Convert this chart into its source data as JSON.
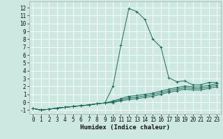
{
  "xlabel": "Humidex (Indice chaleur)",
  "bg_color": "#cce8e0",
  "grid_color": "#ffffff",
  "line_color": "#1a6b5a",
  "x_values": [
    0,
    1,
    2,
    3,
    4,
    5,
    6,
    7,
    8,
    9,
    10,
    11,
    12,
    13,
    14,
    15,
    16,
    17,
    18,
    19,
    20,
    21,
    22,
    23
  ],
  "line1": [
    -0.8,
    -1.0,
    -0.9,
    -0.75,
    -0.65,
    -0.55,
    -0.45,
    -0.35,
    -0.2,
    -0.1,
    2.0,
    7.2,
    11.9,
    11.5,
    10.5,
    8.0,
    7.0,
    3.1,
    2.6,
    2.7,
    2.2,
    2.2,
    2.5,
    2.5
  ],
  "line2": [
    -0.8,
    -1.0,
    -0.9,
    -0.75,
    -0.65,
    -0.55,
    -0.45,
    -0.35,
    -0.2,
    -0.1,
    0.15,
    0.45,
    0.75,
    0.85,
    1.0,
    1.15,
    1.4,
    1.65,
    1.85,
    2.05,
    1.95,
    1.95,
    2.15,
    2.35
  ],
  "line3": [
    -0.8,
    -1.0,
    -0.9,
    -0.75,
    -0.65,
    -0.55,
    -0.45,
    -0.35,
    -0.2,
    -0.1,
    0.05,
    0.3,
    0.55,
    0.65,
    0.8,
    0.95,
    1.2,
    1.45,
    1.65,
    1.85,
    1.75,
    1.75,
    1.95,
    2.15
  ],
  "line4": [
    -0.8,
    -1.0,
    -0.9,
    -0.75,
    -0.65,
    -0.55,
    -0.45,
    -0.35,
    -0.2,
    -0.1,
    -0.05,
    0.15,
    0.35,
    0.45,
    0.6,
    0.75,
    1.0,
    1.25,
    1.45,
    1.65,
    1.55,
    1.55,
    1.75,
    1.95
  ],
  "ylim": [
    -1.5,
    12.8
  ],
  "xlim": [
    -0.5,
    23.5
  ],
  "yticks": [
    -1,
    0,
    1,
    2,
    3,
    4,
    5,
    6,
    7,
    8,
    9,
    10,
    11,
    12
  ],
  "xticks": [
    0,
    1,
    2,
    3,
    4,
    5,
    6,
    7,
    8,
    9,
    10,
    11,
    12,
    13,
    14,
    15,
    16,
    17,
    18,
    19,
    20,
    21,
    22,
    23
  ],
  "xlabel_fontsize": 6.5,
  "tick_fontsize": 5.5
}
